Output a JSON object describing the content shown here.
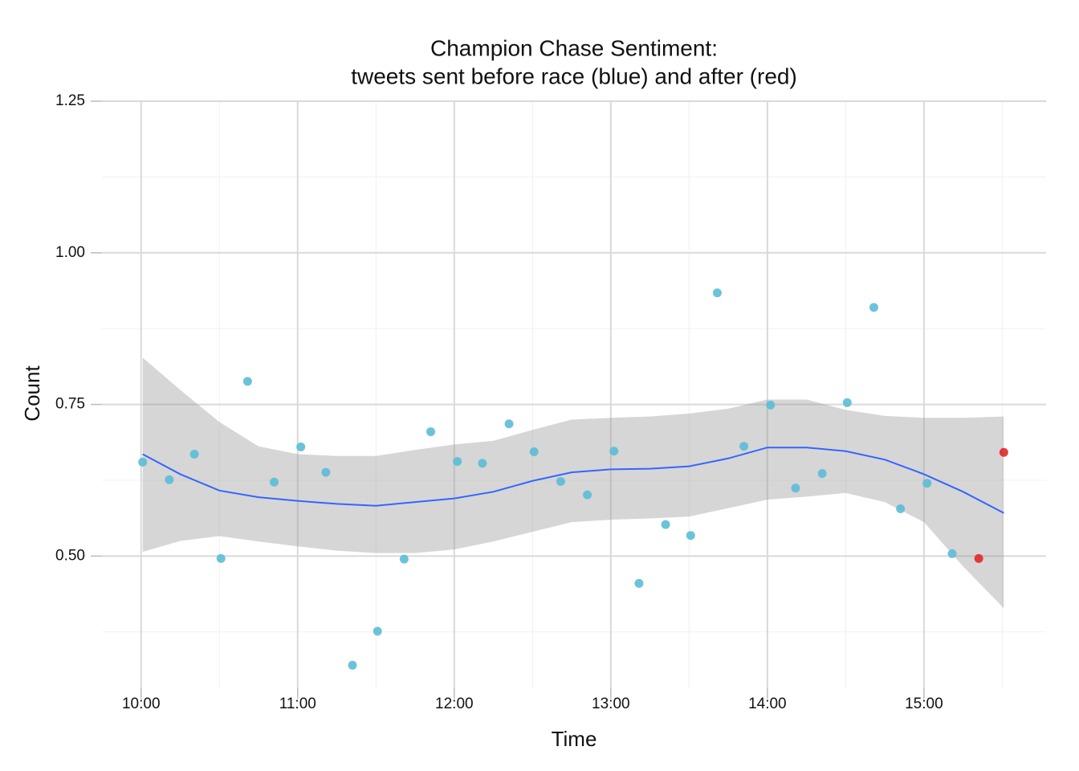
{
  "chart_data": {
    "type": "scatter",
    "title": [
      "Champion Chase Sentiment:",
      "tweets sent before race (blue) and after (red)"
    ],
    "x_label": "Time",
    "y_label": "Count",
    "xlim": [
      9.75,
      15.78
    ],
    "ylim": [
      0.282,
      1.25
    ],
    "xticks": [
      {
        "value": 10,
        "label": "10:00"
      },
      {
        "value": 11,
        "label": "11:00"
      },
      {
        "value": 12,
        "label": "12:00"
      },
      {
        "value": 13,
        "label": "13:00"
      },
      {
        "value": 14,
        "label": "14:00"
      },
      {
        "value": 15,
        "label": "15:00"
      }
    ],
    "yticks": [
      {
        "value": 0.5,
        "label": "0.50"
      },
      {
        "value": 0.75,
        "label": "0.75"
      },
      {
        "value": 1,
        "label": "1.00"
      },
      {
        "value": 1.25,
        "label": "1.25"
      }
    ],
    "xminor": [
      10.5,
      11.5,
      12.5,
      13.5,
      14.5,
      15.5
    ],
    "yminor": [
      0.375,
      0.625,
      0.875,
      1.125
    ],
    "grid": true,
    "series": [
      {
        "color": "#5bbcd6",
        "x": [
          10.01,
          10.18,
          10.34,
          10.51,
          10.68,
          10.85,
          11.02,
          11.18,
          11.35,
          11.51,
          11.68,
          11.85,
          12.02,
          12.18,
          12.35,
          12.51,
          12.68,
          12.85,
          13.02,
          13.18,
          13.35,
          13.51,
          13.68,
          13.85,
          14.02,
          14.18,
          14.35,
          14.51,
          14.68,
          14.85,
          15.02,
          15.18
        ],
        "values": [
          0.655,
          0.626,
          0.668,
          0.496,
          0.788,
          0.622,
          0.68,
          0.638,
          0.32,
          0.376,
          0.495,
          0.705,
          0.656,
          0.653,
          0.718,
          0.672,
          0.623,
          0.601,
          0.673,
          0.455,
          0.552,
          0.534,
          0.934,
          0.681,
          0.749,
          0.612,
          0.636,
          0.753,
          0.91,
          0.578,
          0.62,
          0.504
        ]
      },
      {
        "color": "#e02828",
        "x": [
          15.35,
          15.51
        ],
        "values": [
          0.496,
          0.671
        ]
      }
    ],
    "smooth": {
      "color": "#3366ff",
      "band_color": "#999999",
      "x": [
        10.01,
        10.25,
        10.5,
        10.75,
        11.0,
        11.25,
        11.5,
        11.75,
        12.0,
        12.25,
        12.5,
        12.75,
        13.0,
        13.25,
        13.5,
        13.75,
        14.0,
        14.25,
        14.5,
        14.75,
        15.0,
        15.25,
        15.51
      ],
      "values": [
        0.668,
        0.635,
        0.608,
        0.597,
        0.591,
        0.586,
        0.583,
        0.589,
        0.595,
        0.606,
        0.624,
        0.638,
        0.643,
        0.644,
        0.648,
        0.661,
        0.679,
        0.679,
        0.673,
        0.659,
        0.635,
        0.606,
        0.571
      ],
      "upper": [
        0.827,
        0.774,
        0.721,
        0.681,
        0.668,
        0.665,
        0.665,
        0.675,
        0.684,
        0.69,
        0.708,
        0.725,
        0.728,
        0.73,
        0.735,
        0.743,
        0.758,
        0.758,
        0.741,
        0.731,
        0.728,
        0.728,
        0.73
      ],
      "lower": [
        0.507,
        0.525,
        0.533,
        0.524,
        0.516,
        0.509,
        0.505,
        0.505,
        0.511,
        0.524,
        0.54,
        0.556,
        0.56,
        0.562,
        0.565,
        0.579,
        0.593,
        0.598,
        0.604,
        0.589,
        0.556,
        0.483,
        0.414
      ]
    }
  }
}
